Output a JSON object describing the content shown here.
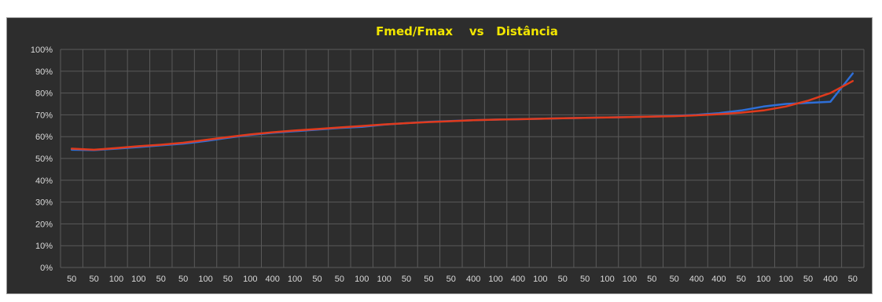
{
  "chart_data": {
    "type": "line",
    "title": "Fmed/Fmax    vs   Distância",
    "xlabel": "",
    "ylabel": "",
    "ylim": [
      0,
      1
    ],
    "y_tick_labels": [
      "0%",
      "10%",
      "20%",
      "30%",
      "40%",
      "50%",
      "60%",
      "70%",
      "80%",
      "90%",
      "100%"
    ],
    "grid": true,
    "categories": [
      "50",
      "50",
      "100",
      "100",
      "50",
      "50",
      "100",
      "50",
      "100",
      "400",
      "100",
      "50",
      "50",
      "100",
      "100",
      "50",
      "50",
      "50",
      "400",
      "100",
      "400",
      "100",
      "50",
      "50",
      "100",
      "100",
      "50",
      "50",
      "400",
      "400",
      "50",
      "100",
      "100",
      "50",
      "400",
      "50"
    ],
    "series": [
      {
        "color": "#2e6fd8",
        "style": "data",
        "values": [
          0.54,
          0.538,
          0.545,
          0.552,
          0.56,
          0.568,
          0.58,
          0.595,
          0.608,
          0.618,
          0.625,
          0.632,
          0.64,
          0.645,
          0.655,
          0.662,
          0.668,
          0.672,
          0.675,
          0.678,
          0.68,
          0.682,
          0.684,
          0.686,
          0.688,
          0.69,
          0.692,
          0.695,
          0.7,
          0.708,
          0.72,
          0.738,
          0.75,
          0.755,
          0.76,
          0.89
        ]
      },
      {
        "color": "#e03a1c",
        "style": "trend",
        "values": [
          0.545,
          0.54,
          0.548,
          0.556,
          0.563,
          0.572,
          0.585,
          0.598,
          0.61,
          0.62,
          0.628,
          0.635,
          0.642,
          0.649,
          0.656,
          0.662,
          0.667,
          0.671,
          0.675,
          0.678,
          0.68,
          0.682,
          0.684,
          0.686,
          0.688,
          0.69,
          0.692,
          0.694,
          0.698,
          0.703,
          0.71,
          0.72,
          0.738,
          0.765,
          0.8,
          0.855
        ]
      }
    ]
  },
  "colors": {
    "plot_background": "#2d2d2d",
    "grid": "#5a5a5a",
    "title": "#f2e600",
    "tick_text": "#d9d9d9"
  }
}
